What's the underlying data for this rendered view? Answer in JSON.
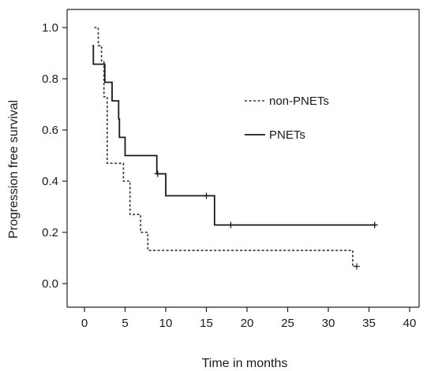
{
  "chart_data": {
    "type": "line",
    "subtype": "kaplan-meier",
    "title": "",
    "xlabel": "Time in months",
    "ylabel": "Progression free survival",
    "xlim": [
      0,
      40
    ],
    "ylim": [
      0,
      1.0
    ],
    "xticks": [
      "0",
      "5",
      "10",
      "15",
      "20",
      "25",
      "30",
      "35",
      "40"
    ],
    "yticks": [
      "0.0",
      "0.2",
      "0.4",
      "0.6",
      "0.8",
      "1.0"
    ],
    "grid": false,
    "legend_position": "top-right",
    "series": [
      {
        "name": "non-PNETs",
        "line_style": "dashed",
        "color": "#333333",
        "steps": [
          [
            1.2,
            1.0
          ],
          [
            1.7,
            0.93
          ],
          [
            2.1,
            0.87
          ],
          [
            2.4,
            0.73
          ],
          [
            2.8,
            0.47
          ],
          [
            4.8,
            0.4
          ],
          [
            5.6,
            0.27
          ],
          [
            6.9,
            0.2
          ],
          [
            7.8,
            0.13
          ],
          [
            33.0,
            0.067
          ],
          [
            33.6,
            0.067
          ]
        ],
        "censored": [
          [
            33.5,
            0.067
          ]
        ]
      },
      {
        "name": "PNETs",
        "line_style": "solid",
        "color": "#1a1a1a",
        "steps": [
          [
            1.0,
            0.93
          ],
          [
            1.1,
            0.857
          ],
          [
            2.5,
            0.786
          ],
          [
            3.4,
            0.714
          ],
          [
            4.2,
            0.643
          ],
          [
            4.3,
            0.571
          ],
          [
            5.0,
            0.5
          ],
          [
            8.9,
            0.429
          ],
          [
            10.0,
            0.343
          ],
          [
            16.0,
            0.229
          ],
          [
            35.8,
            0.229
          ]
        ],
        "censored": [
          [
            9.0,
            0.429
          ],
          [
            15.0,
            0.343
          ],
          [
            18.0,
            0.229
          ],
          [
            35.7,
            0.229
          ]
        ]
      }
    ]
  }
}
